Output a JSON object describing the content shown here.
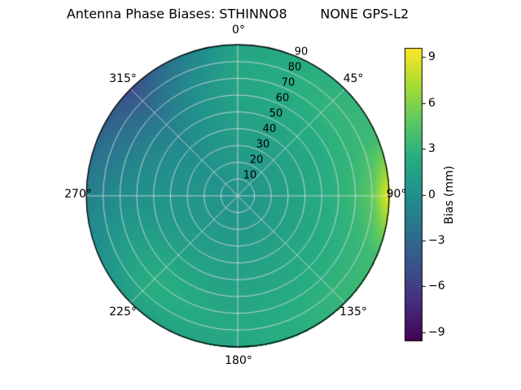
{
  "chart_data": {
    "type": "heatmap",
    "projection": "polar",
    "title": "Antenna Phase Biases: STHINNO8        NONE GPS-L2",
    "theta_tick_labels": [
      "0°",
      "45°",
      "90°",
      "135°",
      "180°",
      "225°",
      "270°",
      "315°"
    ],
    "r_tick_labels": [
      "10",
      "20",
      "30",
      "40",
      "50",
      "60",
      "70",
      "80",
      "90"
    ],
    "colorbar": {
      "label": "Bias (mm)",
      "tick_labels": [
        "9",
        "6",
        "3",
        "0",
        "−3",
        "−6",
        "−9"
      ],
      "tick_values": [
        9,
        6,
        3,
        0,
        -3,
        -6,
        -9
      ],
      "vmin": -9.6,
      "vmax": 9.6
    },
    "grid": true,
    "legend_position": "right-colorbar",
    "value_unit": "mm",
    "azimuth_deg": [
      0,
      22.5,
      45,
      67.5,
      90,
      112.5,
      135,
      157.5,
      180,
      202.5,
      225,
      247.5,
      270,
      292.5,
      315,
      337.5,
      360
    ],
    "zenith_deg": [
      0,
      10,
      20,
      30,
      40,
      50,
      60,
      70,
      80,
      90
    ],
    "bias_mm": [
      [
        0.3,
        0.5,
        0.8,
        1.0,
        1.2,
        1.4,
        1.6,
        1.8,
        1.8,
        1.6
      ],
      [
        0.3,
        0.5,
        0.9,
        1.1,
        1.4,
        1.7,
        2.0,
        2.3,
        2.4,
        2.2
      ],
      [
        0.3,
        0.5,
        0.9,
        1.2,
        1.6,
        2.0,
        2.4,
        2.8,
        3.0,
        2.8
      ],
      [
        0.3,
        0.5,
        0.9,
        1.3,
        1.7,
        2.1,
        2.6,
        3.0,
        3.4,
        3.6
      ],
      [
        0.3,
        0.5,
        0.9,
        1.3,
        1.8,
        2.3,
        2.8,
        3.5,
        5.0,
        9.5
      ],
      [
        0.3,
        0.5,
        0.9,
        1.3,
        1.7,
        2.1,
        2.5,
        2.9,
        3.3,
        3.8
      ],
      [
        0.3,
        0.5,
        0.9,
        1.2,
        1.6,
        2.0,
        2.3,
        2.6,
        3.0,
        3.2
      ],
      [
        0.3,
        0.45,
        0.8,
        1.1,
        1.4,
        1.7,
        2.0,
        2.2,
        2.5,
        2.4
      ],
      [
        0.3,
        0.4,
        0.7,
        1.0,
        1.2,
        1.4,
        1.6,
        1.8,
        2.0,
        1.8
      ],
      [
        0.3,
        0.4,
        0.65,
        0.95,
        1.2,
        1.5,
        1.9,
        2.2,
        2.1,
        1.5
      ],
      [
        0.3,
        0.4,
        0.6,
        0.9,
        1.2,
        1.6,
        2.2,
        2.6,
        2.2,
        1.2
      ],
      [
        0.3,
        0.35,
        0.5,
        0.65,
        0.75,
        0.9,
        1.1,
        1.1,
        0.7,
        0.0
      ],
      [
        0.3,
        0.3,
        0.4,
        0.4,
        0.3,
        0.2,
        0.0,
        -0.3,
        -0.8,
        -1.2
      ],
      [
        0.3,
        0.3,
        0.3,
        0.2,
        0.0,
        -0.3,
        -0.7,
        -1.4,
        -2.2,
        -3.0
      ],
      [
        0.3,
        0.3,
        0.2,
        0.0,
        -0.3,
        -0.8,
        -1.5,
        -2.5,
        -3.8,
        -5.0
      ],
      [
        0.3,
        0.4,
        0.5,
        0.5,
        0.5,
        0.4,
        0.2,
        -0.2,
        -0.8,
        -1.5
      ],
      [
        0.3,
        0.5,
        0.8,
        1.0,
        1.2,
        1.4,
        1.6,
        1.8,
        1.8,
        1.6
      ]
    ],
    "colormap": "viridis",
    "colormap_stops": [
      {
        "t": 0.0,
        "rgb": [
          68,
          1,
          84
        ]
      },
      {
        "t": 0.125,
        "rgb": [
          71,
          44,
          122
        ]
      },
      {
        "t": 0.25,
        "rgb": [
          59,
          81,
          139
        ]
      },
      {
        "t": 0.375,
        "rgb": [
          44,
          113,
          142
        ]
      },
      {
        "t": 0.5,
        "rgb": [
          33,
          144,
          141
        ]
      },
      {
        "t": 0.625,
        "rgb": [
          39,
          173,
          129
        ]
      },
      {
        "t": 0.75,
        "rgb": [
          92,
          200,
          99
        ]
      },
      {
        "t": 0.875,
        "rgb": [
          170,
          220,
          50
        ]
      },
      {
        "t": 1.0,
        "rgb": [
          253,
          231,
          37
        ]
      }
    ],
    "grid_color": "#dedede",
    "outline_color": "#000000"
  }
}
